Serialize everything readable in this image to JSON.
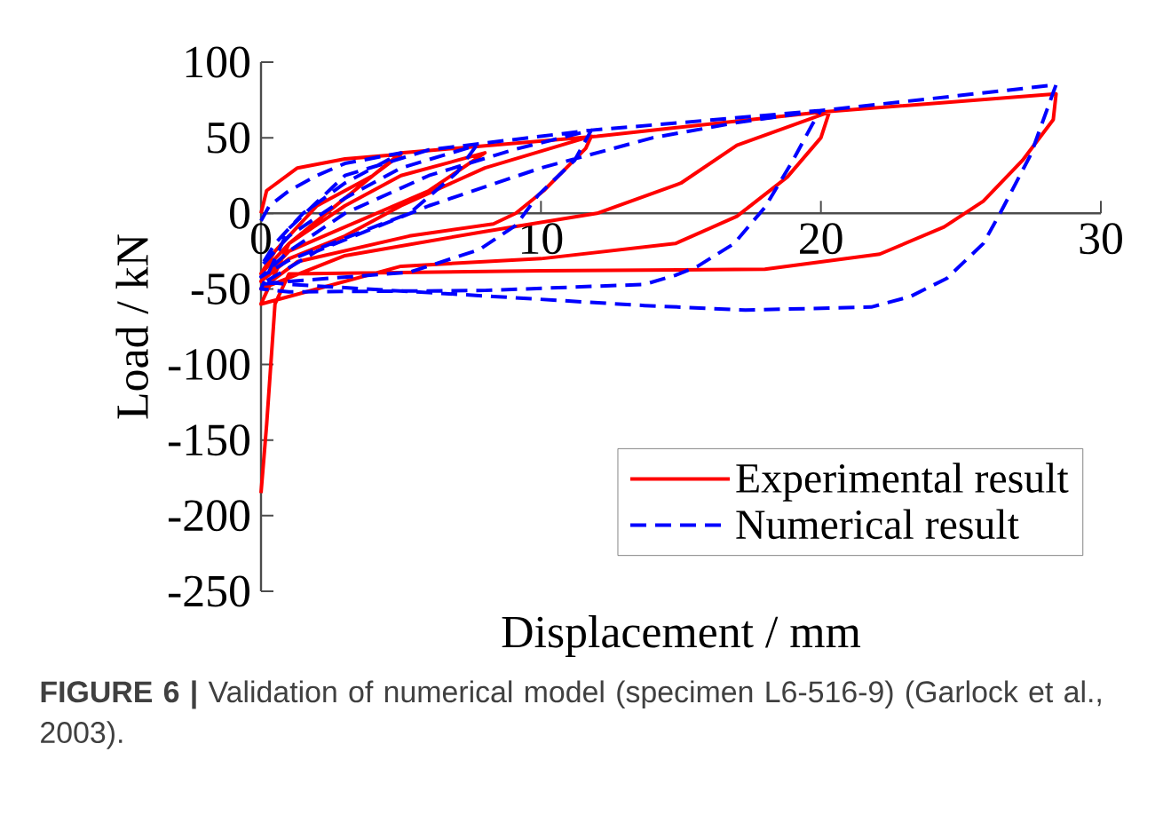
{
  "chart_data": {
    "type": "line",
    "xlabel": "Displacement / mm",
    "ylabel": "Load / kN",
    "xlim": [
      0,
      30
    ],
    "ylim": [
      -250,
      100
    ],
    "xticks": [
      0,
      10,
      20,
      30
    ],
    "yticks": [
      -250,
      -200,
      -150,
      -100,
      -50,
      0,
      50,
      100
    ],
    "legend": "bottom right",
    "marker": "none",
    "series": [
      {
        "name": "Experimental result",
        "color": "#ff0000",
        "line_style": "solid",
        "x": [
          0,
          0.2,
          1.3,
          3,
          5,
          4,
          2,
          0.5,
          0,
          1,
          3,
          5,
          7,
          8,
          6,
          3.5,
          1,
          0,
          1,
          3,
          5,
          8,
          11.8,
          11.6,
          10.1,
          9.1,
          8.3,
          5.3,
          1.3,
          0,
          3,
          8,
          12,
          15,
          17,
          20.3,
          20.0,
          18.8,
          17.0,
          14.8,
          10,
          5,
          0,
          1,
          5,
          12,
          20,
          28.4,
          28.3,
          27.2,
          25.8,
          24.4,
          22.1,
          18,
          10,
          1,
          0.5,
          0.2,
          0
        ],
        "values": [
          0,
          15,
          30,
          36,
          39,
          25,
          5,
          -25,
          -40,
          -20,
          5,
          25,
          35,
          40,
          15,
          -5,
          -25,
          -45,
          -30,
          -15,
          5,
          30,
          51,
          43,
          15,
          0,
          -7,
          -15,
          -32,
          -50,
          -28,
          -12,
          0,
          20,
          45,
          67,
          50,
          24,
          -2,
          -20,
          -30,
          -35,
          -60,
          -20,
          40,
          51,
          67,
          79,
          62,
          35,
          8,
          -9,
          -27,
          -37,
          -38,
          -40,
          -60,
          -140,
          -185
        ]
      },
      {
        "name": "Numerical result",
        "color": "#0000ff",
        "line_style": "dashed",
        "x": [
          0,
          0.3,
          1,
          2,
          3,
          5,
          3,
          1.5,
          0.5,
          0,
          1,
          3,
          5,
          7.7,
          7.0,
          5.3,
          3.2,
          1,
          0,
          1,
          3,
          6,
          9,
          11.8,
          11.2,
          9.9,
          9.1,
          7.8,
          5.3,
          1,
          0,
          2,
          6,
          10,
          14,
          17,
          20,
          19.7,
          19.0,
          18,
          16.9,
          15.6,
          14.8,
          13.7,
          8,
          1,
          0,
          1,
          3,
          6,
          11.8,
          15,
          20,
          24,
          28.4,
          28.3,
          27.5,
          26.4,
          25.8,
          24.5,
          23.2,
          21.8,
          17.3,
          13.7,
          8.3,
          1,
          0
        ],
        "values": [
          -5,
          5,
          15,
          25,
          33,
          40,
          20,
          0,
          -20,
          -35,
          -15,
          10,
          30,
          45,
          27,
          0,
          -15,
          -31,
          -42,
          -25,
          0,
          25,
          42,
          55,
          35,
          12,
          -8,
          -24,
          -39,
          -45,
          -47,
          -25,
          5,
          30,
          50,
          60,
          68,
          59,
          35,
          4,
          -20,
          -35,
          -41,
          -47,
          -51,
          -52,
          -50,
          -10,
          25,
          42,
          55,
          60,
          68,
          76,
          85,
          80,
          39,
          0,
          -20,
          -43,
          -55,
          -62,
          -64,
          -61,
          -55,
          -47,
          -45
        ]
      }
    ],
    "annotations": [
      "**FIGURE 6 |** Validation of numerical model (specimen L6-516-9) (Garlock et al., 2003)."
    ]
  }
}
